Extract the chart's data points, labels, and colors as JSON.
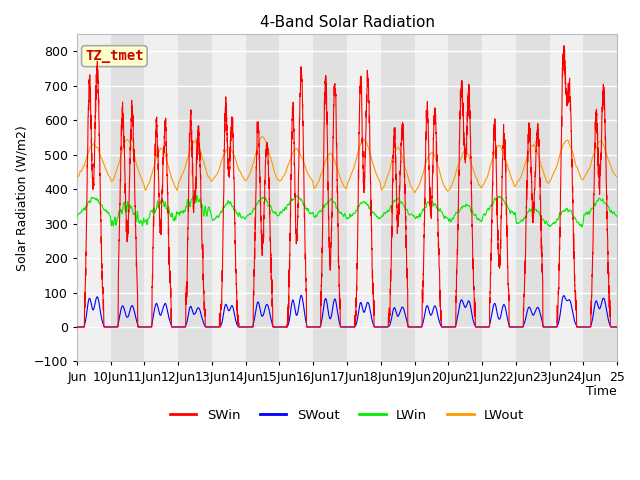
{
  "title": "4-Band Solar Radiation",
  "xlabel": "Time",
  "ylabel": "Solar Radiation (W/m2)",
  "ylim": [
    -100,
    850
  ],
  "annotation_text": "TZ_tmet",
  "annotation_color": "#cc0000",
  "annotation_bg": "#ffffcc",
  "annotation_border": "#aaaaaa",
  "colors": {
    "SWin": "#ff0000",
    "SWout": "#0000ff",
    "LWin": "#00ee00",
    "LWout": "#ff9900"
  },
  "background_color": "#ffffff",
  "plot_bg_color": "#f0f0f0",
  "alt_band_color": "#e0e0e0",
  "grid_color": "#ffffff",
  "n_days": 16,
  "pts_per_day": 288
}
